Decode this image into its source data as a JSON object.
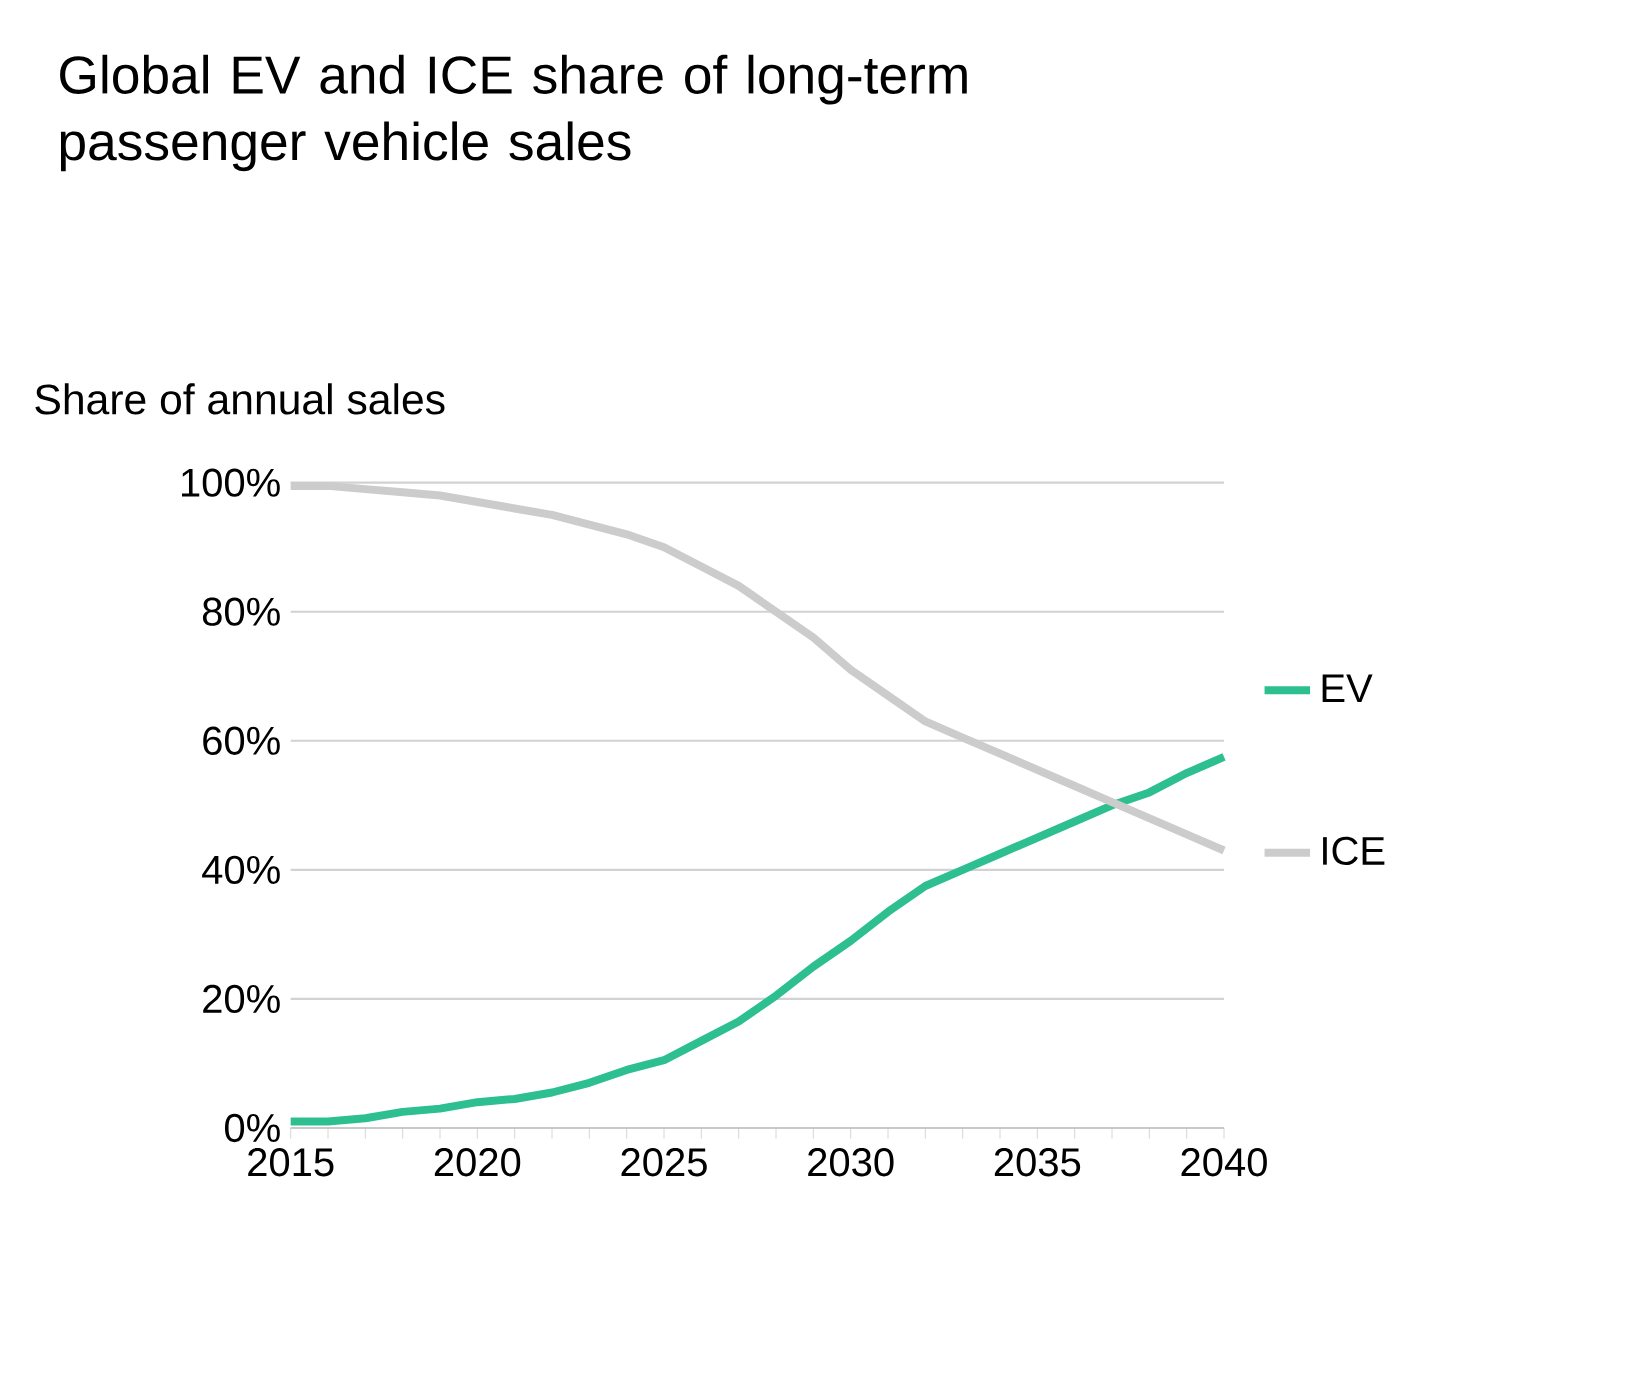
{
  "chart_data": {
    "type": "line",
    "title": "Global EV and ICE share of long-term passenger vehicle sales",
    "ylabel": "Share of annual sales",
    "x": [
      2015,
      2016,
      2017,
      2018,
      2019,
      2020,
      2021,
      2022,
      2023,
      2024,
      2025,
      2026,
      2027,
      2028,
      2029,
      2030,
      2031,
      2032,
      2033,
      2034,
      2035,
      2036,
      2037,
      2038,
      2039,
      2040
    ],
    "series": [
      {
        "name": "EV",
        "color": "#2ebf91",
        "values": [
          1,
          1,
          1.5,
          2.5,
          3,
          4,
          4.5,
          5.5,
          7,
          9,
          10.5,
          13.5,
          16.5,
          20.5,
          25,
          29,
          33.5,
          37.5,
          40,
          42.5,
          45,
          47.5,
          50,
          52,
          55,
          57.5
        ]
      },
      {
        "name": "ICE",
        "color": "#cccccc",
        "values": [
          99.5,
          99.5,
          99,
          98.5,
          98,
          97,
          96,
          95,
          93.5,
          92,
          90,
          87,
          84,
          80,
          76,
          71,
          67,
          63,
          60.5,
          58,
          55.5,
          53,
          50.5,
          48,
          45.5,
          43
        ]
      }
    ],
    "xlim": [
      2015,
      2040
    ],
    "xticks": [
      2015,
      {
        "value": 2016,
        "label": null
      },
      {
        "value": 2017,
        "label": null
      },
      {
        "value": 2018,
        "label": null
      },
      {
        "value": 2019,
        "label": null
      },
      2020,
      {
        "value": 2021,
        "label": null
      },
      {
        "value": 2022,
        "label": null
      },
      {
        "value": 2023,
        "label": null
      },
      {
        "value": 2024,
        "label": null
      },
      2025,
      {
        "value": 2026,
        "label": null
      },
      {
        "value": 2027,
        "label": null
      },
      {
        "value": 2028,
        "label": null
      },
      {
        "value": 2029,
        "label": null
      },
      2030,
      {
        "value": 2031,
        "label": null
      },
      {
        "value": 2032,
        "label": null
      },
      {
        "value": 2033,
        "label": null
      },
      {
        "value": 2034,
        "label": null
      },
      2035,
      {
        "value": 2036,
        "label": null
      },
      {
        "value": 2037,
        "label": null
      },
      {
        "value": 2038,
        "label": null
      },
      {
        "value": 2039,
        "label": null
      },
      2040
    ],
    "ylim": [
      0,
      100
    ],
    "yticks": [
      {
        "value": 0,
        "label": "0%"
      },
      {
        "value": 20,
        "label": "20%"
      },
      {
        "value": 40,
        "label": "40%"
      },
      {
        "value": 60,
        "label": "60%"
      },
      {
        "value": 80,
        "label": "80%"
      },
      {
        "value": 100,
        "label": "100%"
      }
    ],
    "grid": "y",
    "legend": "right",
    "marker": "none",
    "line_style": "solid"
  }
}
